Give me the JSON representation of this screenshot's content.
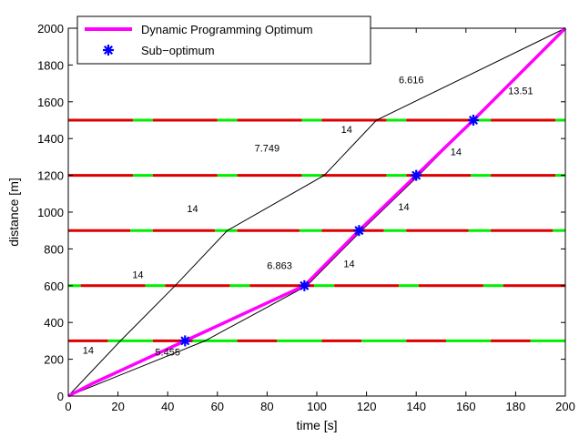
{
  "chart_data": {
    "type": "line",
    "xlabel": "time [s]",
    "ylabel": "distance [m]",
    "xlim": [
      0,
      200
    ],
    "ylim": [
      0,
      2000
    ],
    "xticks": [
      0,
      20,
      40,
      60,
      80,
      100,
      120,
      140,
      160,
      180,
      200
    ],
    "yticks": [
      0,
      200,
      400,
      600,
      800,
      1000,
      1200,
      1400,
      1600,
      1800,
      2000
    ],
    "grid": false,
    "legend_position": "top-left",
    "legend": [
      {
        "label": "Dynamic Programming Optimum",
        "color": "#ff00ff",
        "marker": "line"
      },
      {
        "label": "Sub−optimum",
        "color": "#0000ff",
        "marker": "star"
      }
    ],
    "series": [
      {
        "name": "Dynamic Programming Optimum",
        "color": "#ff00ff",
        "x": [
          0,
          10,
          47,
          95,
          117,
          140,
          163,
          200
        ],
        "y": [
          0,
          70,
          300,
          600,
          900,
          1200,
          1500,
          2000
        ]
      },
      {
        "name": "Sub−optimum",
        "color": "#0000ff",
        "marker": "star",
        "x": [
          47,
          95,
          117,
          140,
          163
        ],
        "y": [
          300,
          600,
          900,
          1200,
          1500
        ]
      }
    ],
    "paths": [
      {
        "color": "#000000",
        "x": [
          0,
          21,
          43,
          64,
          103,
          124,
          200
        ],
        "y": [
          0,
          300,
          600,
          900,
          1200,
          1500,
          2000
        ]
      },
      {
        "color": "#000000",
        "x": [
          0,
          55,
          96,
          118,
          141,
          163,
          200
        ],
        "y": [
          0,
          300,
          600,
          900,
          1200,
          1500,
          2000
        ]
      }
    ],
    "signals": {
      "y": [
        300,
        600,
        900,
        1200,
        1500
      ],
      "red_color": "#dd0000",
      "green_color": "#00ee00",
      "phases": [
        {
          "start": 0,
          "period": 34,
          "red": 16
        },
        {
          "start": 5,
          "period": 34,
          "red": 26
        },
        {
          "start": 0,
          "period": 34,
          "red": 25
        },
        {
          "start": 0,
          "period": 34,
          "red": 26
        },
        {
          "start": 0,
          "period": 34,
          "red": 26
        }
      ]
    },
    "annotations": [
      {
        "text": "14",
        "x": 8,
        "y": 230
      },
      {
        "text": "5.455",
        "x": 40,
        "y": 220
      },
      {
        "text": "14",
        "x": 28,
        "y": 640
      },
      {
        "text": "6.863",
        "x": 85,
        "y": 690
      },
      {
        "text": "14",
        "x": 50,
        "y": 1000
      },
      {
        "text": "14",
        "x": 113,
        "y": 700
      },
      {
        "text": "7.749",
        "x": 80,
        "y": 1330
      },
      {
        "text": "14",
        "x": 135,
        "y": 1010
      },
      {
        "text": "14",
        "x": 112,
        "y": 1430
      },
      {
        "text": "14",
        "x": 156,
        "y": 1310
      },
      {
        "text": "6.616",
        "x": 138,
        "y": 1700
      },
      {
        "text": "13.51",
        "x": 182,
        "y": 1640
      }
    ]
  }
}
